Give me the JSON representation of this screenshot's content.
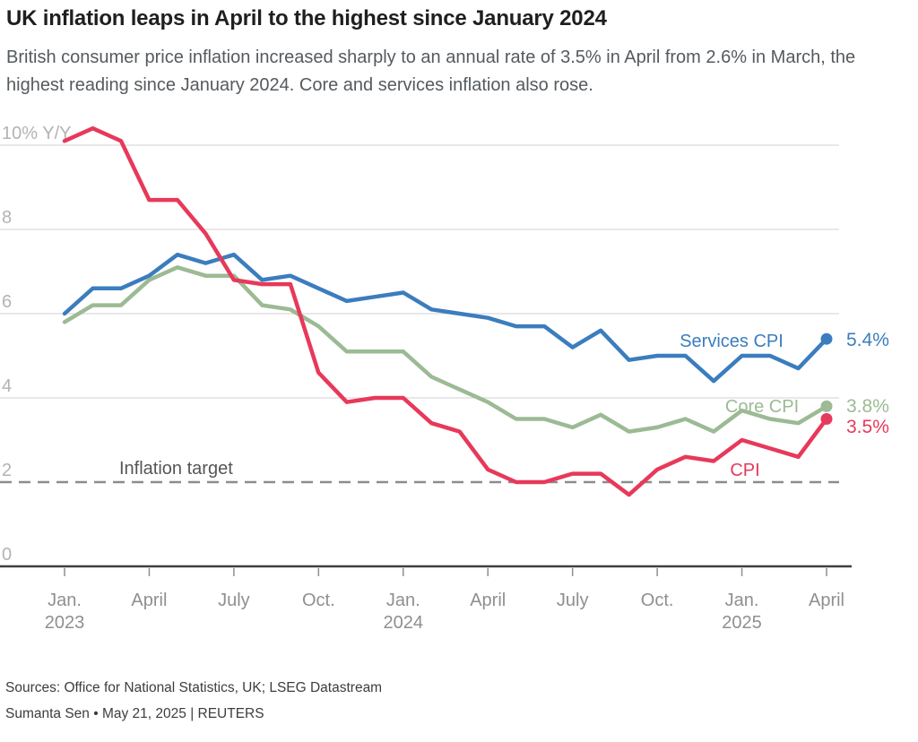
{
  "header": {
    "title": "UK inflation leaps in April to the highest since January 2024",
    "subtitle": "British consumer price inflation increased sharply to an annual rate of 3.5% in April from 2.6% in March, the highest reading since January 2024. Core and services inflation also rose."
  },
  "chart_data": {
    "type": "line",
    "title": "UK inflation leaps in April to the highest since January 2024",
    "unit": "% Y/Y",
    "y_axis": {
      "ticks": [
        0,
        2,
        4,
        6,
        8,
        10
      ],
      "tick_labels": [
        "0",
        "2",
        "4",
        "6",
        "8",
        "10% Y/Y"
      ],
      "range": [
        0,
        10.8
      ],
      "grid": true
    },
    "x_axis": {
      "tick_labels": [
        {
          "label": "Jan.",
          "year": "2023"
        },
        {
          "label": "April"
        },
        {
          "label": "July"
        },
        {
          "label": "Oct."
        },
        {
          "label": "Jan.",
          "year": "2024"
        },
        {
          "label": "April"
        },
        {
          "label": "July"
        },
        {
          "label": "Oct."
        },
        {
          "label": "Jan.",
          "year": "2025"
        },
        {
          "label": "April"
        }
      ],
      "months_per_tick": 3
    },
    "months": [
      "2023-01",
      "2023-02",
      "2023-03",
      "2023-04",
      "2023-05",
      "2023-06",
      "2023-07",
      "2023-08",
      "2023-09",
      "2023-10",
      "2023-11",
      "2023-12",
      "2024-01",
      "2024-02",
      "2024-03",
      "2024-04",
      "2024-05",
      "2024-06",
      "2024-07",
      "2024-08",
      "2024-09",
      "2024-10",
      "2024-11",
      "2024-12",
      "2025-01",
      "2025-02",
      "2025-03",
      "2025-04"
    ],
    "series": [
      {
        "name": "Services CPI",
        "slug": "services-cpi",
        "color": "#3b7dbe",
        "end_label": "5.4%",
        "values": [
          6.0,
          6.6,
          6.6,
          6.9,
          7.4,
          7.2,
          7.4,
          6.8,
          6.9,
          6.6,
          6.3,
          6.4,
          6.5,
          6.1,
          6.0,
          5.9,
          5.7,
          5.7,
          5.2,
          5.6,
          4.9,
          5.0,
          5.0,
          4.4,
          5.0,
          5.0,
          4.7,
          5.4
        ]
      },
      {
        "name": "Core CPI",
        "slug": "core-cpi",
        "color": "#9cba94",
        "end_label": "3.8%",
        "values": [
          5.8,
          6.2,
          6.2,
          6.8,
          7.1,
          6.9,
          6.9,
          6.2,
          6.1,
          5.7,
          5.1,
          5.1,
          5.1,
          4.5,
          4.2,
          3.9,
          3.5,
          3.5,
          3.3,
          3.6,
          3.2,
          3.3,
          3.5,
          3.2,
          3.7,
          3.5,
          3.4,
          3.8
        ]
      },
      {
        "name": "CPI",
        "slug": "cpi",
        "color": "#e7395a",
        "end_label": "3.5%",
        "values": [
          10.1,
          10.4,
          10.1,
          8.7,
          8.7,
          7.9,
          6.8,
          6.7,
          6.7,
          4.6,
          3.9,
          4.0,
          4.0,
          3.4,
          3.2,
          2.3,
          2.0,
          2.0,
          2.2,
          2.2,
          1.7,
          2.3,
          2.6,
          2.5,
          3.0,
          2.8,
          2.6,
          3.5
        ]
      }
    ],
    "reference_line": {
      "label": "Inflation target",
      "value": 2,
      "style": "dashed",
      "color": "#8c8c8c"
    },
    "colors": {
      "grid": "#d9d9d9",
      "axis": "#3f3f3f",
      "y_tick_text": "#b3b3b3",
      "x_tick_text": "#8f8f8f",
      "reference_label_text": "#565656"
    },
    "legend_position": "end-of-line"
  },
  "footer": {
    "sources": "Sources: Office for National Statistics, UK; LSEG Datastream",
    "byline": "Sumanta Sen • May 21, 2025 | REUTERS"
  }
}
